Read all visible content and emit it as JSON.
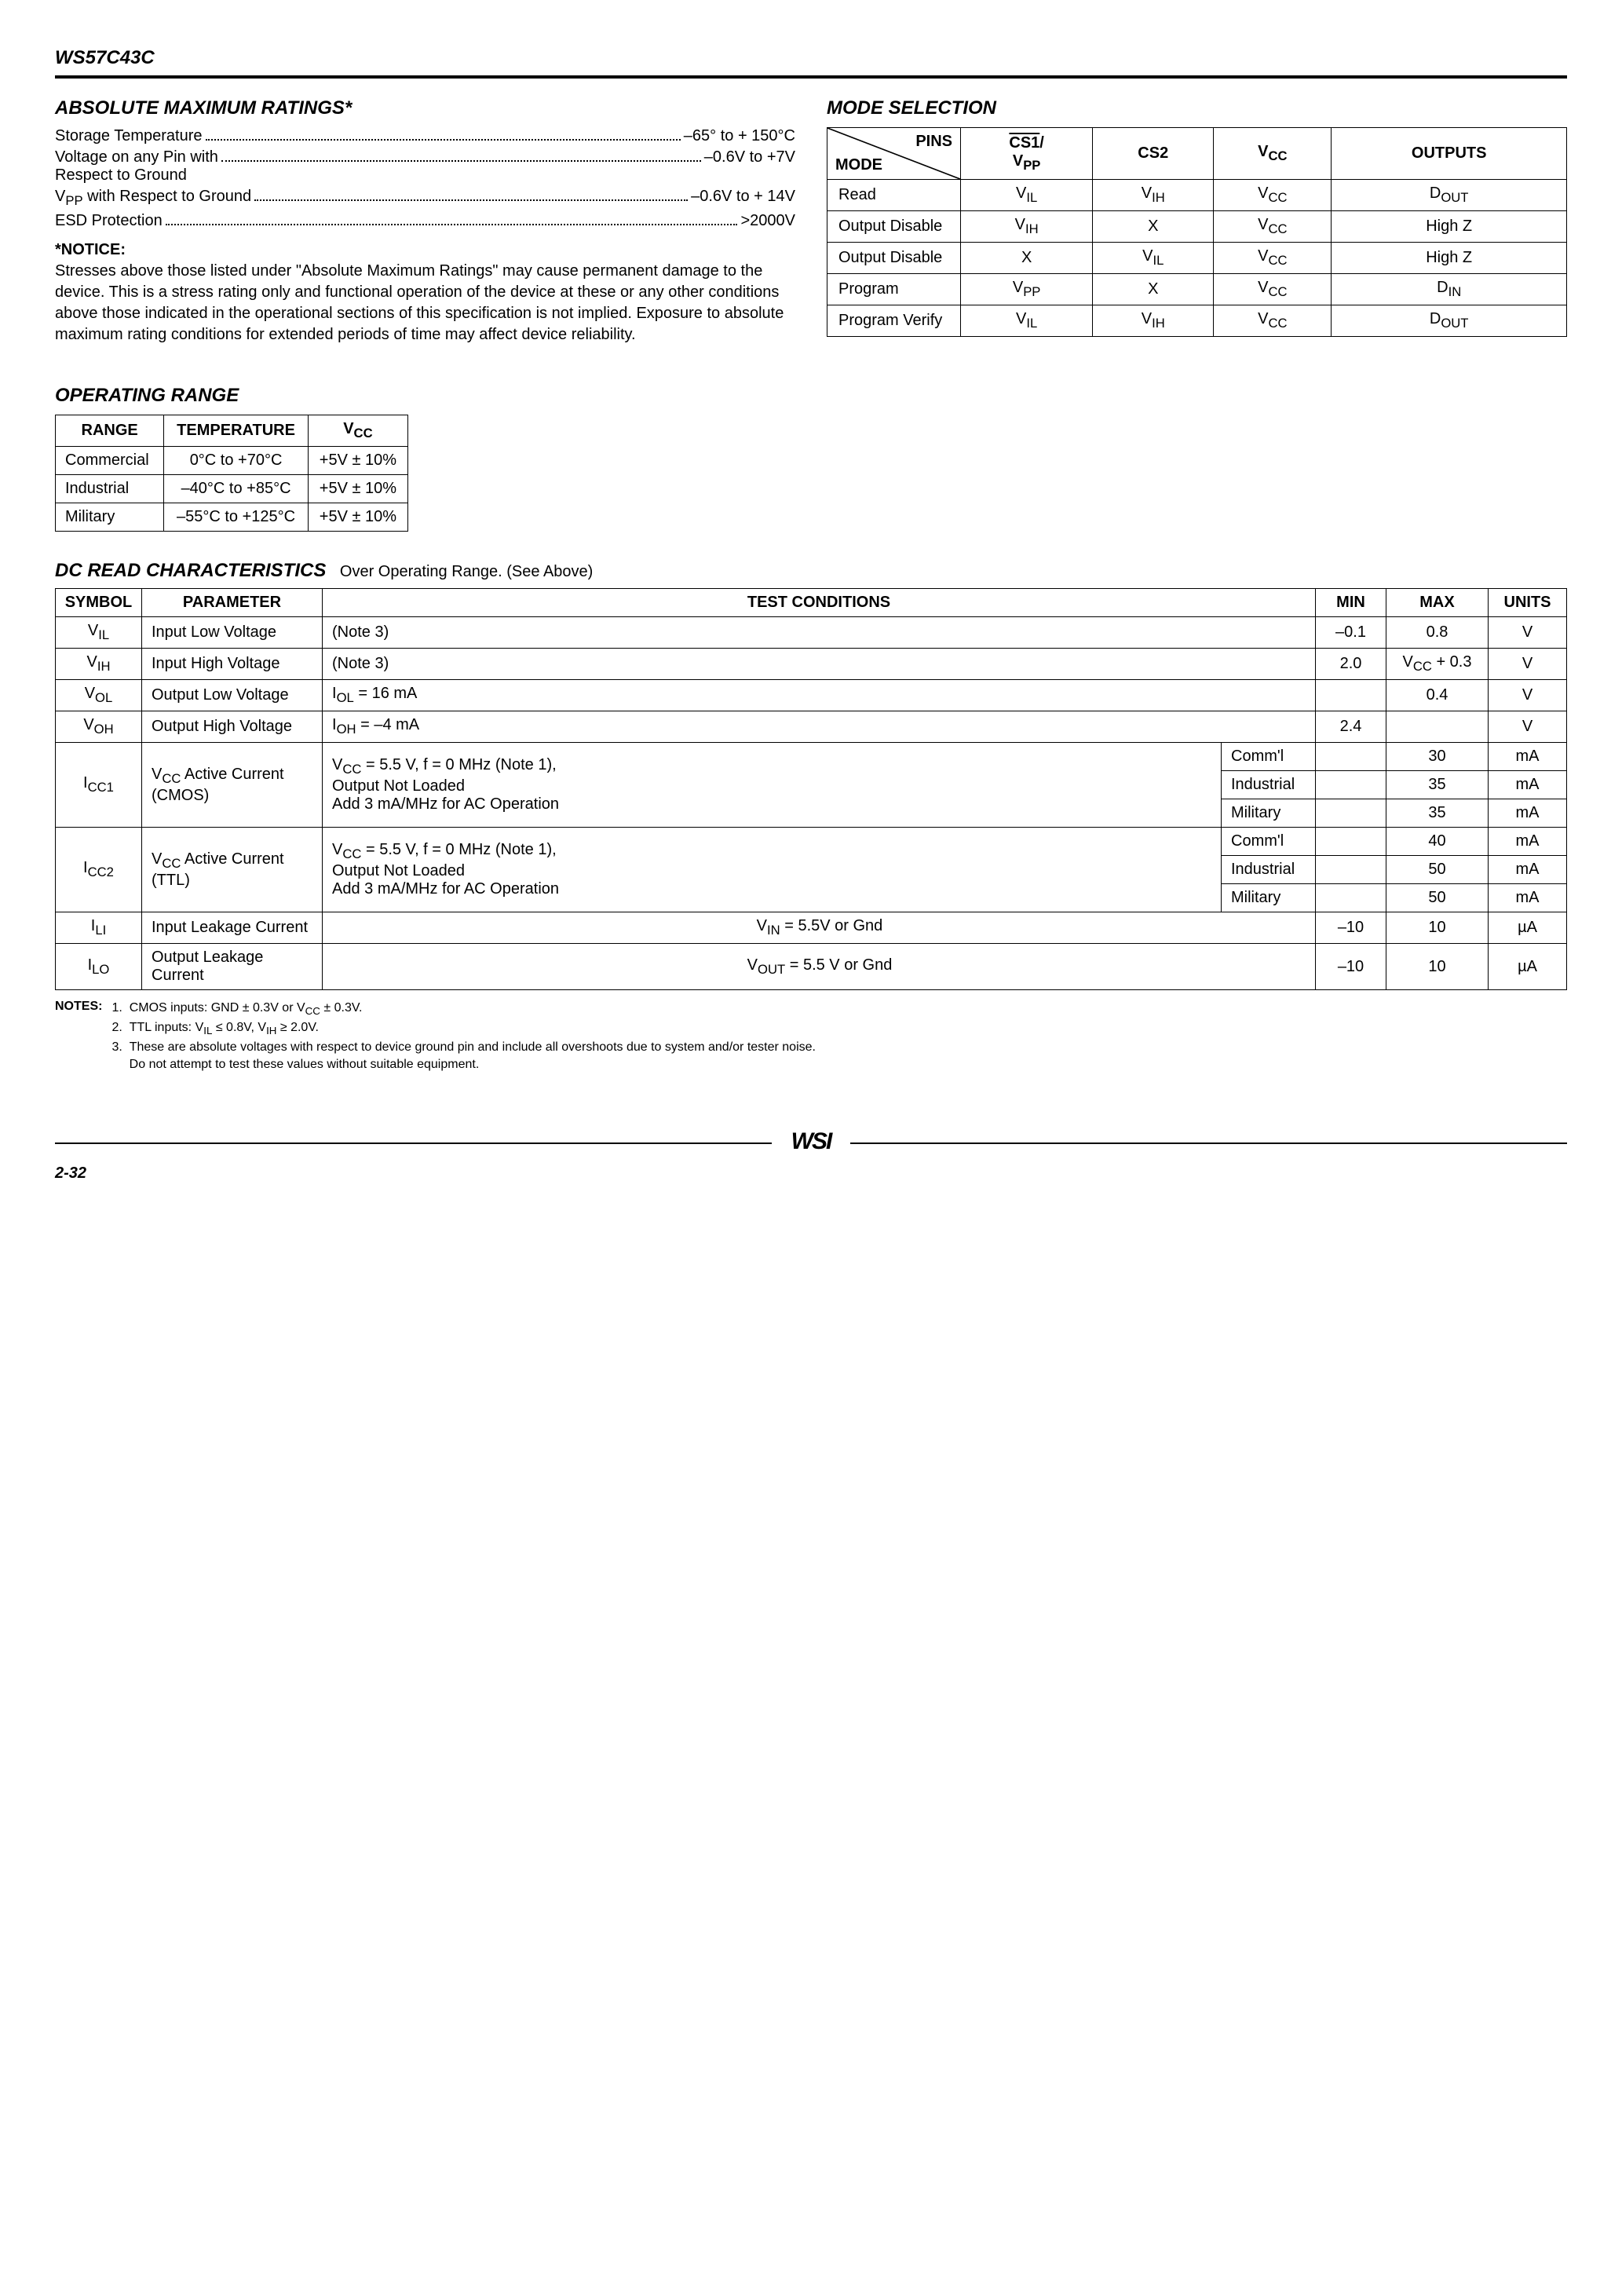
{
  "header": {
    "part": "WS57C43C"
  },
  "amr": {
    "title": "ABSOLUTE MAXIMUM RATINGS*",
    "rows": [
      {
        "label": "Storage Temperature",
        "value": "–65° to + 150°C"
      },
      {
        "label": "Voltage on any Pin with<br>Respect to Ground",
        "value": "–0.6V to +7V"
      },
      {
        "label": "V<sub>PP</sub> with Respect to Ground",
        "value": "–0.6V to + 14V"
      },
      {
        "label": "ESD Protection",
        "value": ">2000V"
      }
    ],
    "notice_title": "*NOTICE:",
    "notice_body": "Stresses above those listed under \"Absolute Maximum Ratings\" may cause permanent damage to the device. This is a stress rating only and functional operation of the device at these or any other conditions above those indicated in the operational sections of this specification is not implied. Exposure to absolute maximum rating conditions for extended periods of time may affect device reliability."
  },
  "mode": {
    "title": "MODE SELECTION",
    "header": {
      "pins": "PINS",
      "mode": "MODE",
      "cs1": "<span class=\"overline\">CS1</span>/<br>V<sub>PP</sub>",
      "cs2": "CS2",
      "vcc": "V<sub>CC</sub>",
      "outputs": "OUTPUTS"
    },
    "rows": [
      [
        "Read",
        "V<sub>IL</sub>",
        "V<sub>IH</sub>",
        "V<sub>CC</sub>",
        "D<sub>OUT</sub>"
      ],
      [
        "Output Disable",
        "V<sub>IH</sub>",
        "X",
        "V<sub>CC</sub>",
        "High Z"
      ],
      [
        "Output Disable",
        "X",
        "V<sub>IL</sub>",
        "V<sub>CC</sub>",
        "High Z"
      ],
      [
        "Program",
        "V<sub>PP</sub>",
        "X",
        "V<sub>CC</sub>",
        "D<sub>IN</sub>"
      ],
      [
        "Program Verify",
        "V<sub>IL</sub>",
        "V<sub>IH</sub>",
        "V<sub>CC</sub>",
        "D<sub>OUT</sub>"
      ]
    ]
  },
  "op_range": {
    "title": "OPERATING RANGE",
    "header": [
      "RANGE",
      "TEMPERATURE",
      "V<sub>CC</sub>"
    ],
    "rows": [
      [
        "Commercial",
        "0°C to +70°C",
        "+5V ± 10%"
      ],
      [
        "Industrial",
        "–40°C to +85°C",
        "+5V ± 10%"
      ],
      [
        "Military",
        "–55°C to +125°C",
        "+5V ± 10%"
      ]
    ]
  },
  "dc": {
    "title": "DC READ CHARACTERISTICS",
    "subtitle": "Over Operating Range. (See Above)",
    "header": [
      "SYMBOL",
      "PARAMETER",
      "TEST CONDITIONS",
      "MIN",
      "MAX",
      "UNITS"
    ],
    "simple_rows": [
      [
        "V<sub>IL</sub>",
        "Input Low Voltage",
        "(Note 3)",
        "–0.1",
        "0.8",
        "V"
      ],
      [
        "V<sub>IH</sub>",
        "Input High Voltage",
        "(Note 3)",
        "2.0",
        "V<sub>CC</sub> + 0.3",
        "V"
      ],
      [
        "V<sub>OL</sub>",
        "Output Low Voltage",
        "I<sub>OL</sub> = 16 mA",
        "",
        "0.4",
        "V"
      ],
      [
        "V<sub>OH</sub>",
        "Output High Voltage",
        "I<sub>OH</sub> = –4 mA",
        "2.4",
        "",
        "V"
      ]
    ],
    "icc_rows": [
      {
        "sym": "I<sub>CC1</sub>",
        "param": "V<sub>CC</sub> Active Current (CMOS)",
        "cond": "V<sub>CC</sub> = 5.5 V, f = 0 MHz (Note 1),<br>Output Not Loaded<br>Add 3 mA/MHz for AC Operation",
        "sub": [
          [
            "Comm'l",
            "",
            "30",
            "mA"
          ],
          [
            "Industrial",
            "",
            "35",
            "mA"
          ],
          [
            "Military",
            "",
            "35",
            "mA"
          ]
        ]
      },
      {
        "sym": "I<sub>CC2</sub>",
        "param": "V<sub>CC</sub> Active Current (TTL)",
        "cond": "V<sub>CC</sub> = 5.5 V, f = 0 MHz (Note 1),<br>Output Not Loaded<br>Add 3 mA/MHz for AC Operation",
        "sub": [
          [
            "Comm'l",
            "",
            "40",
            "mA"
          ],
          [
            "Industrial",
            "",
            "50",
            "mA"
          ],
          [
            "Military",
            "",
            "50",
            "mA"
          ]
        ]
      }
    ],
    "leak_rows": [
      [
        "I<sub>LI</sub>",
        "Input Leakage Current",
        "V<sub>IN</sub> = 5.5V or Gnd",
        "–10",
        "10",
        "µA"
      ],
      [
        "I<sub>LO</sub>",
        "Output Leakage Current",
        "V<sub>OUT</sub> = 5.5 V or Gnd",
        "–10",
        "10",
        "µA"
      ]
    ]
  },
  "notes": {
    "label": "NOTES:",
    "items": [
      "1.&nbsp;&nbsp;CMOS inputs: GND ± 0.3V or V<sub>CC</sub> ± 0.3V.",
      "2.&nbsp;&nbsp;TTL inputs: V<sub>IL</sub> ≤ 0.8V, V<sub>IH</sub> ≥ 2.0V.",
      "3.&nbsp;&nbsp;These are absolute voltages with respect to device ground pin and include all overshoots due to system and/or tester noise.<br>&nbsp;&nbsp;&nbsp;&nbsp;&nbsp;Do not attempt to test these values without suitable equipment."
    ]
  },
  "footer": {
    "page": "2-32",
    "logo": "WSI"
  }
}
